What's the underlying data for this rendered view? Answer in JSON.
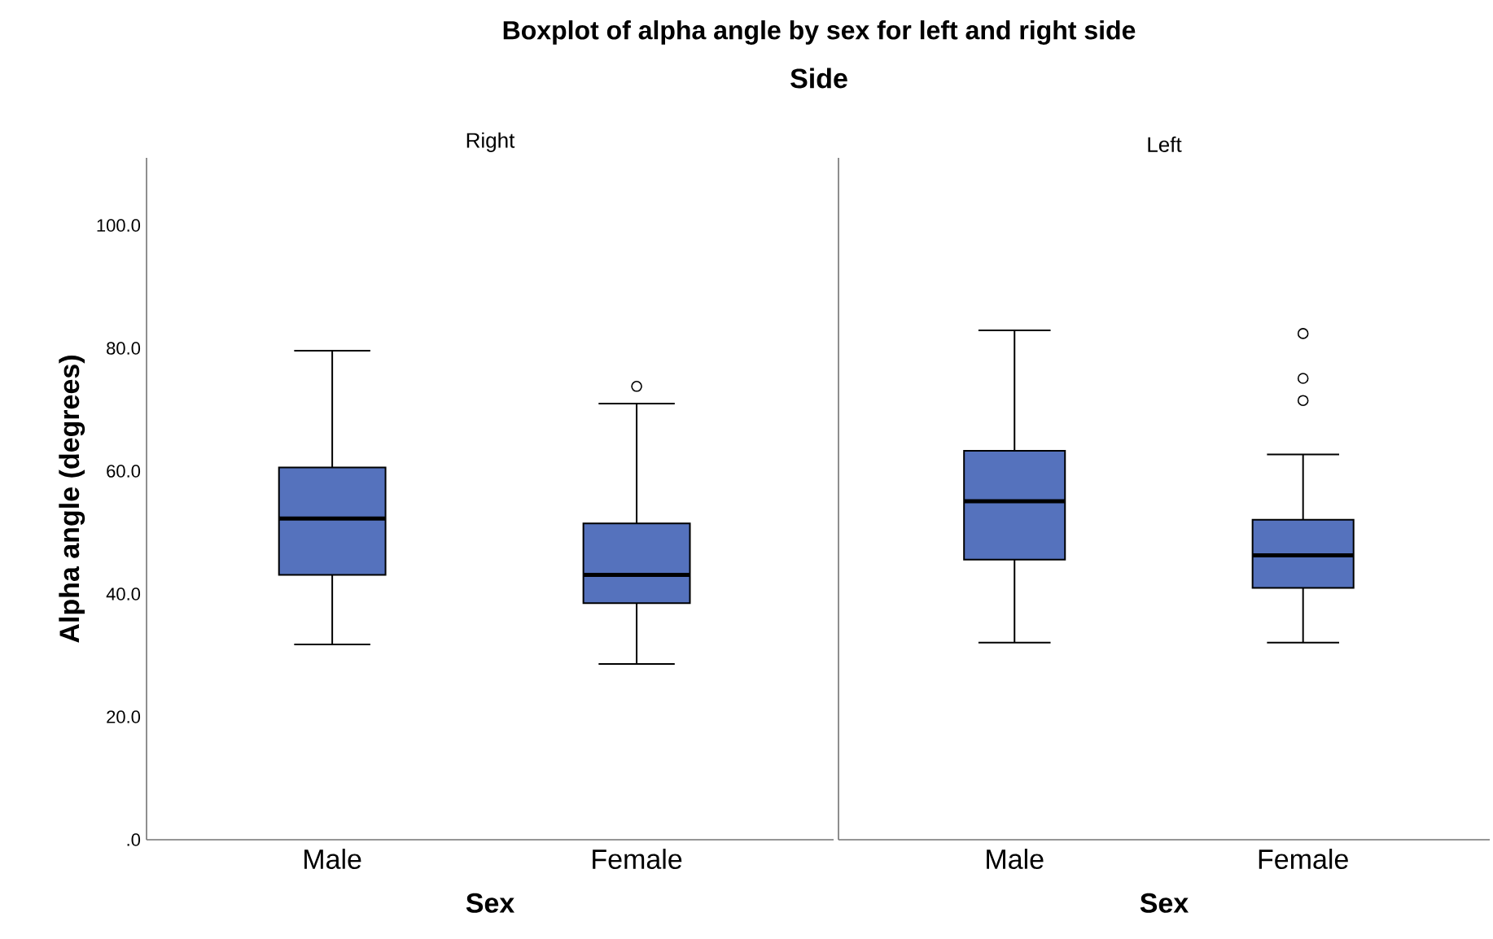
{
  "chart_data": [
    {
      "type": "box",
      "title": "Right",
      "xlabel": "Sex",
      "ylabel": "Alpha angle (degrees)",
      "annotations": [
        "Boxplot of alpha angle by sex for left and right side",
        "Side"
      ],
      "categories": [
        "Male",
        "Female"
      ],
      "ylim": [
        0,
        111
      ],
      "yticks": [
        {
          "value": 0,
          "label": ".0"
        },
        {
          "value": 20,
          "label": "20.0"
        },
        {
          "value": 40,
          "label": "40.0"
        },
        {
          "value": 60,
          "label": "60.0"
        },
        {
          "value": 80,
          "label": "80.0"
        },
        {
          "value": 100,
          "label": "100.0"
        }
      ],
      "series": [
        {
          "color": "#5572bd",
          "boxes": [
            {
              "low": 31.8,
              "q1": 43.1,
              "median": 52.3,
              "q3": 60.6,
              "high": 79.6
            },
            {
              "low": 28.6,
              "q1": 38.5,
              "median": 43.1,
              "q3": 51.5,
              "high": 71.0,
              "outliers": [
                73.8
              ]
            }
          ]
        }
      ]
    },
    {
      "type": "box",
      "title": "Left",
      "xlabel": "Sex",
      "tick_labels": "x",
      "categories": [
        "Male",
        "Female"
      ],
      "ylim": [
        0,
        111
      ],
      "series": [
        {
          "color": "#5572bd",
          "boxes": [
            {
              "low": 32.1,
              "q1": 45.6,
              "median": 55.1,
              "q3": 63.3,
              "high": 82.9
            },
            {
              "low": 32.1,
              "q1": 41.0,
              "median": 46.3,
              "q3": 52.1,
              "high": 62.7,
              "outliers": [
                71.5,
                75.1,
                82.4
              ]
            }
          ]
        }
      ]
    }
  ]
}
